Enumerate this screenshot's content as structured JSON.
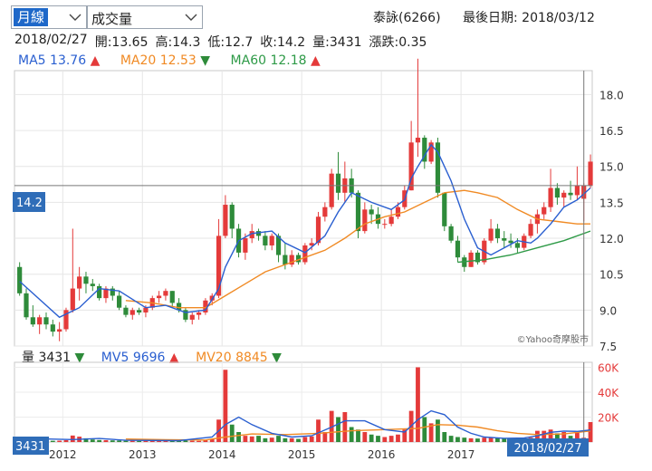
{
  "controls": {
    "period_select": "月線",
    "indicator_select": "成交量"
  },
  "header": {
    "stock": "泰詠(6266)",
    "last_date_label": "最後日期: 2018/03/12"
  },
  "ohlc_line": {
    "date": "2018/02/27",
    "open": "開:13.65",
    "high": "高:14.3",
    "low": "低:12.7",
    "close": "收:14.2",
    "volume": "量:3431",
    "change": "漲跌:0.35"
  },
  "ma_legend": [
    {
      "name": "MA5",
      "value": "13.76",
      "dir": "up",
      "arrow": "▲",
      "color": "#2a5fd0"
    },
    {
      "name": "MA20",
      "value": "12.53",
      "dir": "down",
      "arrow": "▼",
      "color": "#f08a24"
    },
    {
      "name": "MA60",
      "value": "12.18",
      "dir": "up",
      "arrow": "▲",
      "color": "#2e9a47"
    }
  ],
  "vol_legend": [
    {
      "name": "量",
      "value": "3431",
      "dir": "down",
      "arrow": "▼",
      "color": "#222222"
    },
    {
      "name": "MV5",
      "value": "9696",
      "dir": "up",
      "arrow": "▲",
      "color": "#2a5fd0"
    },
    {
      "name": "MV20",
      "value": "8845",
      "dir": "down",
      "arrow": "▼",
      "color": "#f08a24"
    }
  ],
  "price_tag": "14.2",
  "volume_tag": "3431",
  "date_tag": "2018/02/27",
  "watermark": "©Yahoo奇摩股市",
  "colors": {
    "up": "#e43a3a",
    "down": "#2e8b3a",
    "ma5": "#2a5fd0",
    "ma20": "#f08a24",
    "ma60": "#2e9a47",
    "tag": "#2f6db8"
  },
  "chart_data": {
    "type": "candlestick",
    "price_axis": {
      "ticks": [
        7.5,
        9.0,
        10.5,
        12.0,
        13.5,
        15.0,
        16.5,
        18.0
      ],
      "ylim": [
        7.5,
        19.0
      ]
    },
    "volume_axis": {
      "ticks": [
        "20K",
        "40K",
        "60K"
      ],
      "values": [
        20000,
        40000,
        60000
      ],
      "ylim": [
        0,
        64000
      ]
    },
    "x_labels": [
      "2012",
      "2013",
      "2014",
      "2015",
      "2016",
      "2017"
    ],
    "months_start": "2011/06",
    "candles": [
      [
        10.8,
        11.0,
        9.6,
        9.7,
        3000
      ],
      [
        9.7,
        9.9,
        8.6,
        8.7,
        2200
      ],
      [
        8.7,
        9.2,
        8.3,
        8.4,
        1800
      ],
      [
        8.4,
        8.8,
        8.0,
        8.7,
        1500
      ],
      [
        8.7,
        8.9,
        8.2,
        8.4,
        1200
      ],
      [
        8.4,
        8.6,
        7.9,
        8.1,
        1000
      ],
      [
        8.1,
        8.5,
        7.7,
        8.2,
        1100
      ],
      [
        8.2,
        9.1,
        8.1,
        9.0,
        1500
      ],
      [
        9.0,
        12.4,
        8.9,
        9.9,
        5200
      ],
      [
        9.9,
        10.8,
        9.4,
        10.4,
        4300
      ],
      [
        10.4,
        10.6,
        9.7,
        10.1,
        3000
      ],
      [
        10.1,
        10.3,
        9.8,
        10.0,
        2000
      ],
      [
        10.0,
        10.1,
        9.4,
        9.5,
        1600
      ],
      [
        9.5,
        10.0,
        9.3,
        9.9,
        1500
      ],
      [
        9.9,
        10.0,
        9.4,
        9.6,
        1300
      ],
      [
        9.6,
        9.8,
        9.0,
        9.1,
        1200
      ],
      [
        9.1,
        9.2,
        8.7,
        8.8,
        1000
      ],
      [
        8.8,
        9.1,
        8.6,
        9.0,
        1000
      ],
      [
        9.0,
        9.1,
        8.8,
        8.9,
        900
      ],
      [
        8.9,
        9.2,
        8.7,
        9.1,
        900
      ],
      [
        9.1,
        9.6,
        9.0,
        9.5,
        1200
      ],
      [
        9.5,
        9.8,
        9.3,
        9.6,
        1400
      ],
      [
        9.6,
        9.9,
        9.4,
        9.8,
        1200
      ],
      [
        9.8,
        9.8,
        9.1,
        9.3,
        1000
      ],
      [
        9.3,
        9.5,
        8.9,
        9.0,
        900
      ],
      [
        9.0,
        9.1,
        8.5,
        8.6,
        1100
      ],
      [
        8.6,
        8.9,
        8.4,
        8.8,
        1000
      ],
      [
        8.8,
        9.0,
        8.6,
        8.9,
        900
      ],
      [
        8.9,
        9.5,
        8.8,
        9.4,
        1500
      ],
      [
        9.4,
        9.7,
        9.2,
        9.6,
        2500
      ],
      [
        9.6,
        12.8,
        9.5,
        12.1,
        18000
      ],
      [
        12.1,
        13.8,
        12.0,
        13.4,
        58000
      ],
      [
        13.4,
        13.5,
        12.0,
        12.4,
        14000
      ],
      [
        12.4,
        12.6,
        11.2,
        11.4,
        8000
      ],
      [
        11.4,
        12.2,
        11.1,
        12.0,
        5000
      ],
      [
        12.0,
        12.6,
        11.8,
        12.3,
        4500
      ],
      [
        12.3,
        12.4,
        11.9,
        12.1,
        5000
      ],
      [
        12.1,
        12.3,
        11.5,
        11.7,
        3000
      ],
      [
        11.7,
        12.2,
        11.5,
        12.1,
        3500
      ],
      [
        12.1,
        12.2,
        11.0,
        11.3,
        5000
      ],
      [
        11.3,
        11.8,
        10.7,
        10.9,
        3000
      ],
      [
        10.9,
        11.5,
        10.8,
        11.3,
        3000
      ],
      [
        11.3,
        11.4,
        10.9,
        11.0,
        2500
      ],
      [
        11.0,
        11.8,
        10.9,
        11.7,
        4000
      ],
      [
        11.7,
        12.0,
        11.5,
        11.8,
        4500
      ],
      [
        11.8,
        13.1,
        11.7,
        12.9,
        18000
      ],
      [
        12.9,
        13.5,
        12.7,
        13.3,
        8000
      ],
      [
        13.3,
        14.9,
        13.2,
        14.7,
        25000
      ],
      [
        14.7,
        15.6,
        13.6,
        13.9,
        20000
      ],
      [
        13.9,
        15.2,
        13.5,
        14.5,
        24000
      ],
      [
        14.5,
        14.9,
        13.7,
        13.9,
        12000
      ],
      [
        13.9,
        14.0,
        12.0,
        12.3,
        10000
      ],
      [
        12.3,
        13.5,
        12.2,
        13.2,
        8000
      ],
      [
        13.2,
        13.4,
        12.6,
        13.0,
        6000
      ],
      [
        13.0,
        13.3,
        12.4,
        12.6,
        5000
      ],
      [
        12.6,
        12.8,
        12.4,
        12.6,
        4000
      ],
      [
        12.6,
        13.2,
        12.5,
        12.9,
        5000
      ],
      [
        12.9,
        13.5,
        12.8,
        13.3,
        6000
      ],
      [
        13.3,
        14.2,
        13.2,
        14.0,
        10000
      ],
      [
        14.0,
        16.9,
        14.0,
        16.0,
        25000
      ],
      [
        16.0,
        19.5,
        15.4,
        16.2,
        60000
      ],
      [
        16.2,
        16.3,
        14.9,
        15.2,
        20000
      ],
      [
        15.2,
        16.1,
        15.1,
        16.0,
        15000
      ],
      [
        16.0,
        16.2,
        13.7,
        13.9,
        18000
      ],
      [
        13.9,
        13.9,
        12.3,
        12.5,
        8000
      ],
      [
        12.5,
        12.6,
        11.8,
        11.9,
        5000
      ],
      [
        11.9,
        12.1,
        11.0,
        11.2,
        4000
      ],
      [
        11.2,
        11.3,
        10.6,
        10.8,
        3500
      ],
      [
        10.8,
        11.5,
        10.8,
        11.4,
        3000
      ],
      [
        11.4,
        11.5,
        10.9,
        11.0,
        2800
      ],
      [
        11.0,
        12.0,
        10.9,
        11.9,
        3500
      ],
      [
        11.9,
        12.8,
        11.8,
        12.4,
        4000
      ],
      [
        12.4,
        12.6,
        11.8,
        12.0,
        3000
      ],
      [
        12.0,
        12.3,
        11.6,
        11.9,
        2800
      ],
      [
        11.9,
        12.2,
        11.6,
        11.8,
        2600
      ],
      [
        11.8,
        12.0,
        11.4,
        11.6,
        2500
      ],
      [
        11.6,
        12.2,
        11.5,
        12.1,
        3500
      ],
      [
        12.1,
        12.8,
        12.0,
        12.6,
        3500
      ],
      [
        12.6,
        13.2,
        12.2,
        13.0,
        9000
      ],
      [
        13.0,
        13.5,
        12.8,
        13.3,
        9000
      ],
      [
        13.3,
        14.9,
        13.1,
        14.1,
        10000
      ],
      [
        14.1,
        14.3,
        13.4,
        13.7,
        7000
      ],
      [
        13.7,
        14.0,
        13.3,
        13.9,
        8000
      ],
      [
        13.9,
        14.4,
        13.6,
        13.8,
        5000
      ],
      [
        13.8,
        15.0,
        13.6,
        14.2,
        8000
      ],
      [
        13.65,
        14.3,
        12.7,
        14.2,
        3431
      ],
      [
        14.2,
        15.5,
        14.1,
        15.2,
        16000
      ]
    ],
    "ma5": [
      [
        0,
        10.2
      ],
      [
        6,
        8.7
      ],
      [
        9,
        9.1
      ],
      [
        12,
        9.9
      ],
      [
        15,
        9.8
      ],
      [
        19,
        9.1
      ],
      [
        22,
        9.2
      ],
      [
        25,
        8.9
      ],
      [
        28,
        9.0
      ],
      [
        30,
        9.9
      ],
      [
        31,
        10.8
      ],
      [
        33,
        11.9
      ],
      [
        35,
        12.2
      ],
      [
        38,
        12.3
      ],
      [
        40,
        11.8
      ],
      [
        43,
        11.4
      ],
      [
        46,
        12.1
      ],
      [
        48,
        13.1
      ],
      [
        50,
        13.9
      ],
      [
        53,
        13.5
      ],
      [
        56,
        13.2
      ],
      [
        58,
        13.6
      ],
      [
        59,
        14.5
      ],
      [
        60,
        15.0
      ],
      [
        62,
        15.9
      ],
      [
        63,
        15.6
      ],
      [
        65,
        14.4
      ],
      [
        67,
        12.8
      ],
      [
        69,
        11.6
      ],
      [
        71,
        11.3
      ],
      [
        73,
        11.6
      ],
      [
        75,
        11.9
      ],
      [
        77,
        11.8
      ],
      [
        78,
        12.0
      ],
      [
        80,
        12.6
      ],
      [
        82,
        13.3
      ],
      [
        84,
        13.6
      ],
      [
        86,
        14.1
      ]
    ],
    "ma20": [
      [
        16,
        9.4
      ],
      [
        20,
        9.3
      ],
      [
        24,
        9.1
      ],
      [
        28,
        9.1
      ],
      [
        31,
        9.6
      ],
      [
        34,
        10.1
      ],
      [
        37,
        10.6
      ],
      [
        40,
        10.9
      ],
      [
        43,
        11.2
      ],
      [
        46,
        11.5
      ],
      [
        49,
        12.0
      ],
      [
        52,
        12.6
      ],
      [
        55,
        12.9
      ],
      [
        58,
        13.1
      ],
      [
        61,
        13.5
      ],
      [
        64,
        13.9
      ],
      [
        67,
        14.0
      ],
      [
        69,
        13.9
      ],
      [
        72,
        13.7
      ],
      [
        75,
        13.2
      ],
      [
        78,
        12.8
      ],
      [
        81,
        12.7
      ],
      [
        84,
        12.6
      ],
      [
        86,
        12.6
      ]
    ],
    "ma60": [
      [
        66,
        11.0
      ],
      [
        70,
        11.1
      ],
      [
        74,
        11.3
      ],
      [
        78,
        11.6
      ],
      [
        82,
        11.9
      ],
      [
        86,
        12.3
      ]
    ],
    "mv5": [
      [
        0,
        3000
      ],
      [
        8,
        2000
      ],
      [
        12,
        2800
      ],
      [
        16,
        1400
      ],
      [
        24,
        1100
      ],
      [
        29,
        4000
      ],
      [
        31,
        14000
      ],
      [
        33,
        20000
      ],
      [
        35,
        14000
      ],
      [
        38,
        7000
      ],
      [
        41,
        4000
      ],
      [
        44,
        5000
      ],
      [
        47,
        12000
      ],
      [
        49,
        17000
      ],
      [
        52,
        17000
      ],
      [
        55,
        10000
      ],
      [
        58,
        8000
      ],
      [
        60,
        18000
      ],
      [
        62,
        25000
      ],
      [
        64,
        22000
      ],
      [
        66,
        12000
      ],
      [
        68,
        7000
      ],
      [
        70,
        4000
      ],
      [
        73,
        3000
      ],
      [
        76,
        3200
      ],
      [
        78,
        5000
      ],
      [
        80,
        7800
      ],
      [
        82,
        8800
      ],
      [
        84,
        8500
      ],
      [
        86,
        9696
      ]
    ],
    "mv20": [
      [
        16,
        2400
      ],
      [
        22,
        1800
      ],
      [
        28,
        1600
      ],
      [
        31,
        4000
      ],
      [
        35,
        6500
      ],
      [
        40,
        6000
      ],
      [
        45,
        7000
      ],
      [
        50,
        9000
      ],
      [
        55,
        10000
      ],
      [
        60,
        11000
      ],
      [
        63,
        14000
      ],
      [
        66,
        13500
      ],
      [
        69,
        12000
      ],
      [
        72,
        9000
      ],
      [
        75,
        7000
      ],
      [
        78,
        6000
      ],
      [
        82,
        6500
      ],
      [
        86,
        8845
      ]
    ],
    "cursor_index": 85
  }
}
